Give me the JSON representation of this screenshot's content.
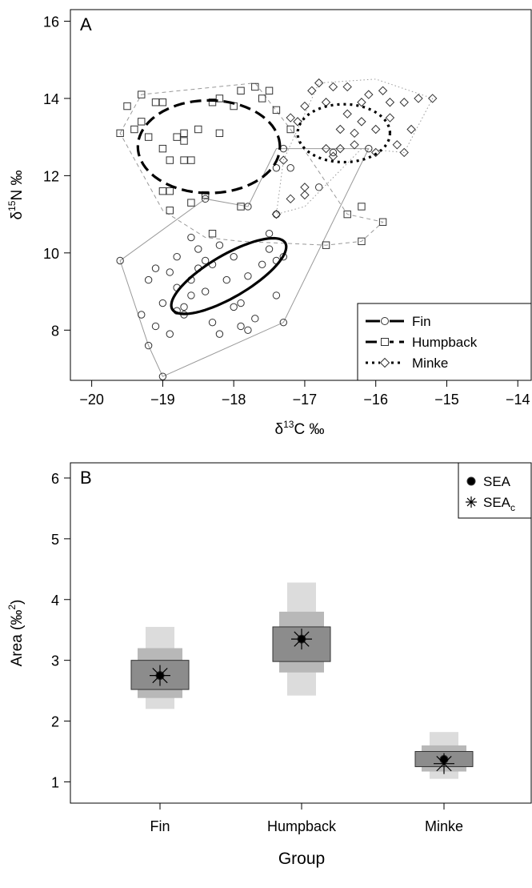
{
  "chart_data": [
    {
      "panel_label": "A",
      "type": "scatter",
      "xlabel_parts": {
        "delta": "δ",
        "sup": "13",
        "rest": "C ‰"
      },
      "ylabel_parts": {
        "delta": "δ",
        "sup": "15",
        "rest": "N ‰"
      },
      "xlim": [
        -20.3,
        -13.8
      ],
      "ylim": [
        6.7,
        16.3
      ],
      "xticks": [
        -20,
        -19,
        -18,
        -17,
        -16,
        -15,
        -14
      ],
      "xtick_labels": [
        "−20",
        "−19",
        "−18",
        "−17",
        "−16",
        "−15",
        "−14"
      ],
      "yticks": [
        8,
        10,
        12,
        14,
        16
      ],
      "ytick_labels": [
        "8",
        "10",
        "12",
        "14",
        "16"
      ],
      "legend": {
        "position": "bottom-right",
        "entries": [
          {
            "label": "Fin",
            "marker": "circle",
            "line": "solid"
          },
          {
            "label": "Humpback",
            "marker": "square",
            "line": "dashed"
          },
          {
            "label": "Minke",
            "marker": "diamond",
            "line": "dotted"
          }
        ]
      },
      "series": [
        {
          "name": "Fin",
          "marker": "circle",
          "ellipse": {
            "cx": -18.07,
            "cy": 9.4,
            "a": 1.2,
            "b": 0.42,
            "angle_deg": 52
          },
          "hull": [
            [
              -19.0,
              6.8
            ],
            [
              -17.3,
              8.2
            ],
            [
              -16.1,
              12.7
            ],
            [
              -17.4,
              12.7
            ],
            [
              -17.8,
              11.2
            ],
            [
              -18.4,
              11.4
            ],
            [
              -19.6,
              9.8
            ],
            [
              -19.2,
              7.6
            ]
          ],
          "points": [
            [
              -19.6,
              9.8
            ],
            [
              -19.0,
              6.8
            ],
            [
              -19.2,
              7.6
            ],
            [
              -19.3,
              8.4
            ],
            [
              -19.1,
              8.1
            ],
            [
              -18.9,
              7.9
            ],
            [
              -19.2,
              9.3
            ],
            [
              -19.0,
              8.7
            ],
            [
              -18.9,
              9.5
            ],
            [
              -18.8,
              9.9
            ],
            [
              -18.8,
              9.1
            ],
            [
              -18.7,
              8.6
            ],
            [
              -18.7,
              8.4
            ],
            [
              -18.6,
              8.9
            ],
            [
              -18.6,
              9.3
            ],
            [
              -18.5,
              9.6
            ],
            [
              -18.5,
              10.1
            ],
            [
              -18.4,
              9.0
            ],
            [
              -18.4,
              9.8
            ],
            [
              -18.3,
              9.7
            ],
            [
              -18.3,
              8.2
            ],
            [
              -18.2,
              10.2
            ],
            [
              -18.1,
              9.3
            ],
            [
              -18.0,
              9.9
            ],
            [
              -18.0,
              8.6
            ],
            [
              -17.9,
              8.1
            ],
            [
              -17.8,
              9.4
            ],
            [
              -17.8,
              8.0
            ],
            [
              -17.7,
              8.3
            ],
            [
              -17.6,
              9.7
            ],
            [
              -17.5,
              10.1
            ],
            [
              -17.4,
              8.9
            ],
            [
              -17.4,
              9.8
            ],
            [
              -17.3,
              8.2
            ],
            [
              -17.3,
              9.9
            ],
            [
              -17.5,
              10.5
            ],
            [
              -17.4,
              11.0
            ],
            [
              -17.4,
              12.2
            ],
            [
              -17.2,
              12.2
            ],
            [
              -17.3,
              12.7
            ],
            [
              -16.6,
              12.6
            ],
            [
              -16.8,
              11.7
            ],
            [
              -16.1,
              12.7
            ],
            [
              -18.4,
              11.4
            ],
            [
              -17.8,
              11.2
            ],
            [
              -18.8,
              8.5
            ],
            [
              -19.1,
              9.6
            ],
            [
              -18.2,
              7.9
            ],
            [
              -17.9,
              8.7
            ],
            [
              -18.6,
              10.4
            ]
          ]
        },
        {
          "name": "Humpback",
          "marker": "square",
          "ellipse": {
            "cx": -18.35,
            "cy": 12.75,
            "a": 1.0,
            "b": 1.2,
            "angle_deg": 0
          },
          "hull": [
            [
              -19.6,
              13.1
            ],
            [
              -19.3,
              14.1
            ],
            [
              -17.7,
              14.4
            ],
            [
              -17.2,
              13.2
            ],
            [
              -16.4,
              11.0
            ],
            [
              -15.9,
              10.8
            ],
            [
              -16.2,
              10.3
            ],
            [
              -16.7,
              10.2
            ],
            [
              -17.9,
              10.3
            ],
            [
              -18.4,
              10.4
            ],
            [
              -19.0,
              11.1
            ]
          ],
          "points": [
            [
              -19.6,
              13.1
            ],
            [
              -19.5,
              13.8
            ],
            [
              -19.4,
              13.2
            ],
            [
              -19.3,
              14.1
            ],
            [
              -19.3,
              13.4
            ],
            [
              -19.2,
              13.0
            ],
            [
              -19.1,
              13.9
            ],
            [
              -19.0,
              13.9
            ],
            [
              -19.0,
              12.7
            ],
            [
              -19.0,
              11.6
            ],
            [
              -18.9,
              12.4
            ],
            [
              -18.9,
              11.1
            ],
            [
              -18.8,
              13.0
            ],
            [
              -18.7,
              13.1
            ],
            [
              -18.7,
              12.9
            ],
            [
              -18.6,
              12.4
            ],
            [
              -18.5,
              13.2
            ],
            [
              -18.4,
              11.5
            ],
            [
              -18.3,
              13.9
            ],
            [
              -18.2,
              14.0
            ],
            [
              -18.2,
              13.1
            ],
            [
              -18.0,
              13.8
            ],
            [
              -17.9,
              14.2
            ],
            [
              -17.9,
              11.2
            ],
            [
              -17.7,
              14.3
            ],
            [
              -17.6,
              14.0
            ],
            [
              -17.5,
              14.2
            ],
            [
              -17.4,
              13.7
            ],
            [
              -17.2,
              13.2
            ],
            [
              -16.4,
              11.0
            ],
            [
              -16.2,
              11.2
            ],
            [
              -15.9,
              10.8
            ],
            [
              -16.2,
              10.3
            ],
            [
              -16.7,
              10.2
            ],
            [
              -18.3,
              10.5
            ],
            [
              -18.9,
              11.6
            ],
            [
              -18.7,
              12.4
            ],
            [
              -18.6,
              11.3
            ]
          ]
        },
        {
          "name": "Minke",
          "marker": "diamond",
          "ellipse": {
            "cx": -16.45,
            "cy": 13.1,
            "a": 0.65,
            "b": 0.75,
            "angle_deg": 0
          },
          "hull": [
            [
              -17.3,
              12.4
            ],
            [
              -16.8,
              14.4
            ],
            [
              -16.0,
              14.5
            ],
            [
              -15.2,
              14.0
            ],
            [
              -15.6,
              12.6
            ],
            [
              -16.2,
              12.7
            ],
            [
              -17.0,
              11.2
            ],
            [
              -17.4,
              11.0
            ]
          ],
          "points": [
            [
              -17.3,
              12.4
            ],
            [
              -17.2,
              13.5
            ],
            [
              -17.1,
              13.4
            ],
            [
              -17.0,
              13.8
            ],
            [
              -16.9,
              14.2
            ],
            [
              -16.8,
              14.4
            ],
            [
              -16.7,
              13.9
            ],
            [
              -16.7,
              12.7
            ],
            [
              -16.6,
              14.3
            ],
            [
              -16.5,
              13.2
            ],
            [
              -16.4,
              14.3
            ],
            [
              -16.4,
              13.6
            ],
            [
              -16.3,
              12.8
            ],
            [
              -16.2,
              13.4
            ],
            [
              -16.2,
              13.9
            ],
            [
              -16.1,
              14.1
            ],
            [
              -16.0,
              13.2
            ],
            [
              -16.0,
              12.6
            ],
            [
              -15.9,
              14.2
            ],
            [
              -15.8,
              13.5
            ],
            [
              -15.7,
              12.8
            ],
            [
              -15.6,
              13.9
            ],
            [
              -15.6,
              12.6
            ],
            [
              -15.5,
              13.2
            ],
            [
              -15.4,
              14.0
            ],
            [
              -15.2,
              14.0
            ],
            [
              -17.0,
              11.5
            ],
            [
              -17.0,
              11.7
            ],
            [
              -17.2,
              11.4
            ],
            [
              -16.6,
              12.5
            ],
            [
              -16.5,
              12.7
            ],
            [
              -17.4,
              11.0
            ],
            [
              -16.3,
              13.1
            ],
            [
              -15.8,
              13.9
            ]
          ]
        }
      ]
    },
    {
      "panel_label": "B",
      "type": "box",
      "xlabel": "Group",
      "ylabel_parts": {
        "main": "Area (‰",
        "sup": "2",
        "close": ")"
      },
      "ylim": [
        0.65,
        6.25
      ],
      "yticks": [
        1,
        2,
        3,
        4,
        5,
        6
      ],
      "ytick_labels": [
        "1",
        "2",
        "3",
        "4",
        "5",
        "6"
      ],
      "categories": [
        "Fin",
        "Humpback",
        "Minke"
      ],
      "legend": {
        "position": "top-right",
        "entries": [
          {
            "label": "SEA",
            "marker": "filled-circle"
          },
          {
            "label": "SEA",
            "sub": "c",
            "marker": "asterisk"
          }
        ]
      },
      "credible_intervals": [
        {
          "group": "Fin",
          "sea": 2.75,
          "sea_c": 2.75,
          "ci95": [
            2.38,
            3.2
          ],
          "ci75": [
            2.52,
            3.0
          ],
          "ci99": [
            2.2,
            3.55
          ]
        },
        {
          "group": "Humpback",
          "sea": 3.35,
          "sea_c": 3.35,
          "ci95": [
            2.8,
            3.8
          ],
          "ci75": [
            2.98,
            3.55
          ],
          "ci99": [
            2.42,
            4.28
          ]
        },
        {
          "group": "Minke",
          "sea": 1.37,
          "sea_c": 1.3,
          "ci95": [
            1.17,
            1.6
          ],
          "ci75": [
            1.25,
            1.5
          ],
          "ci99": [
            1.05,
            1.82
          ]
        }
      ],
      "colors": {
        "ci99": "#dcdcdc",
        "ci95": "#b8b8b8",
        "ci75": "#8c8c8c"
      }
    }
  ]
}
